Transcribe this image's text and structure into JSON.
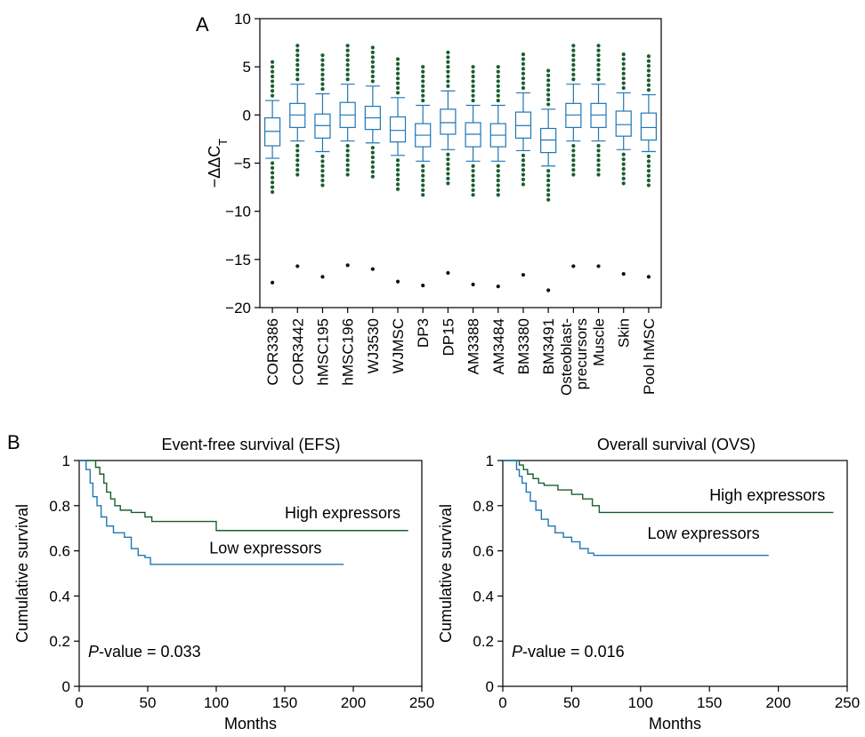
{
  "chart_data": [
    {
      "panel": "A",
      "type": "box",
      "ylabel": "−ΔΔC",
      "ylabel_sub": "T",
      "ylim": [
        -20,
        10
      ],
      "yticks": [
        10,
        5,
        0,
        -5,
        -10,
        -15,
        -20
      ],
      "box_color": "#1f77b4",
      "outlier_color": "#1a5e2e",
      "extreme_color": "#111111",
      "categories": [
        {
          "name": "COR3386",
          "q1": -3.2,
          "median": -1.7,
          "q3": -0.3,
          "wlo": -4.5,
          "whi": 1.5,
          "out_hi": [
            2.0,
            2.5,
            3.0,
            3.5,
            4.0,
            4.5,
            5.0,
            5.5
          ],
          "out_lo": [
            -5.0,
            -5.5,
            -6.0,
            -6.5,
            -7.0,
            -7.5,
            -8.0
          ],
          "extreme": -17.4
        },
        {
          "name": "COR3442",
          "q1": -1.3,
          "median": 0.0,
          "q3": 1.2,
          "wlo": -2.7,
          "whi": 3.2,
          "out_hi": [
            3.7,
            4.2,
            4.7,
            5.2,
            5.7,
            6.2,
            6.7,
            7.2
          ],
          "out_lo": [
            -3.2,
            -3.7,
            -4.2,
            -4.7,
            -5.2,
            -5.7,
            -6.2
          ],
          "extreme": -15.7
        },
        {
          "name": "hMSC195",
          "q1": -2.4,
          "median": -1.1,
          "q3": 0.1,
          "wlo": -3.8,
          "whi": 2.2,
          "out_hi": [
            2.7,
            3.2,
            3.7,
            4.2,
            4.7,
            5.2,
            5.7,
            6.2
          ],
          "out_lo": [
            -4.3,
            -4.8,
            -5.3,
            -5.8,
            -6.3,
            -6.8,
            -7.3
          ],
          "extreme": -16.8
        },
        {
          "name": "hMSC196",
          "q1": -1.3,
          "median": 0.0,
          "q3": 1.3,
          "wlo": -2.7,
          "whi": 3.2,
          "out_hi": [
            3.7,
            4.2,
            4.7,
            5.2,
            5.7,
            6.2,
            6.7,
            7.2
          ],
          "out_lo": [
            -3.2,
            -3.7,
            -4.2,
            -4.7,
            -5.2,
            -5.7,
            -6.2
          ],
          "extreme": -15.6
        },
        {
          "name": "WJ3530",
          "q1": -1.5,
          "median": -0.3,
          "q3": 0.9,
          "wlo": -2.9,
          "whi": 3.0,
          "out_hi": [
            3.5,
            4.0,
            4.5,
            5.0,
            5.5,
            6.0,
            6.5,
            7.0
          ],
          "out_lo": [
            -3.4,
            -3.9,
            -4.4,
            -4.9,
            -5.4,
            -5.9,
            -6.4
          ],
          "extreme": -16.0
        },
        {
          "name": "WJMSC",
          "q1": -2.8,
          "median": -1.6,
          "q3": -0.2,
          "wlo": -4.2,
          "whi": 1.8,
          "out_hi": [
            2.3,
            2.8,
            3.3,
            3.8,
            4.3,
            4.8,
            5.3,
            5.8
          ],
          "out_lo": [
            -4.7,
            -5.2,
            -5.7,
            -6.2,
            -6.7,
            -7.2,
            -7.7
          ],
          "extreme": -17.3
        },
        {
          "name": "DP3",
          "q1": -3.3,
          "median": -2.1,
          "q3": -0.9,
          "wlo": -4.8,
          "whi": 1.0,
          "out_hi": [
            1.5,
            2.0,
            2.5,
            3.0,
            3.5,
            4.0,
            4.5,
            5.0
          ],
          "out_lo": [
            -5.3,
            -5.8,
            -6.3,
            -6.8,
            -7.3,
            -7.8,
            -8.3
          ],
          "extreme": -17.7
        },
        {
          "name": "DP15",
          "q1": -2.0,
          "median": -0.8,
          "q3": 0.6,
          "wlo": -3.6,
          "whi": 2.5,
          "out_hi": [
            3.0,
            3.5,
            4.0,
            4.5,
            5.0,
            5.5,
            6.0,
            6.5
          ],
          "out_lo": [
            -4.1,
            -4.6,
            -5.1,
            -5.6,
            -6.1,
            -6.6,
            -7.1
          ],
          "extreme": -16.4
        },
        {
          "name": "AM3388",
          "q1": -3.3,
          "median": -2.0,
          "q3": -0.8,
          "wlo": -4.8,
          "whi": 1.0,
          "out_hi": [
            1.5,
            2.0,
            2.5,
            3.0,
            3.5,
            4.0,
            4.5,
            5.0
          ],
          "out_lo": [
            -5.3,
            -5.8,
            -6.3,
            -6.8,
            -7.3,
            -7.8,
            -8.3
          ],
          "extreme": -17.6
        },
        {
          "name": "AM3484",
          "q1": -3.3,
          "median": -2.1,
          "q3": -0.9,
          "wlo": -4.8,
          "whi": 1.0,
          "out_hi": [
            1.5,
            2.0,
            2.5,
            3.0,
            3.5,
            4.0,
            4.5,
            5.0
          ],
          "out_lo": [
            -5.3,
            -5.8,
            -6.3,
            -6.8,
            -7.3,
            -7.8,
            -8.3
          ],
          "extreme": -17.8
        },
        {
          "name": "BM3380",
          "q1": -2.4,
          "median": -1.1,
          "q3": 0.3,
          "wlo": -3.7,
          "whi": 2.3,
          "out_hi": [
            2.8,
            3.3,
            3.8,
            4.3,
            4.8,
            5.3,
            5.8,
            6.3
          ],
          "out_lo": [
            -4.2,
            -4.7,
            -5.2,
            -5.7,
            -6.2,
            -6.7,
            -7.2
          ],
          "extreme": -16.6
        },
        {
          "name": "BM3491",
          "q1": -3.9,
          "median": -2.6,
          "q3": -1.4,
          "wlo": -5.3,
          "whi": 0.6,
          "out_hi": [
            1.1,
            1.6,
            2.1,
            2.6,
            3.1,
            3.6,
            4.1,
            4.6
          ],
          "out_lo": [
            -5.8,
            -6.3,
            -6.8,
            -7.3,
            -7.8,
            -8.3,
            -8.8
          ],
          "extreme": -18.2
        },
        {
          "name": "Osteoblast-\nprecursors",
          "q1": -1.3,
          "median": 0.0,
          "q3": 1.2,
          "wlo": -2.7,
          "whi": 3.2,
          "out_hi": [
            3.7,
            4.2,
            4.7,
            5.2,
            5.7,
            6.2,
            6.7,
            7.2
          ],
          "out_lo": [
            -3.2,
            -3.7,
            -4.2,
            -4.7,
            -5.2,
            -5.7,
            -6.2
          ],
          "extreme": -15.7
        },
        {
          "name": "Muscle",
          "q1": -1.3,
          "median": 0.0,
          "q3": 1.2,
          "wlo": -2.7,
          "whi": 3.2,
          "out_hi": [
            3.7,
            4.2,
            4.7,
            5.2,
            5.7,
            6.2,
            6.7,
            7.2
          ],
          "out_lo": [
            -3.2,
            -3.7,
            -4.2,
            -4.7,
            -5.2,
            -5.7,
            -6.2
          ],
          "extreme": -15.7
        },
        {
          "name": "Skin",
          "q1": -2.2,
          "median": -1.0,
          "q3": 0.4,
          "wlo": -3.6,
          "whi": 2.3,
          "out_hi": [
            2.8,
            3.3,
            3.8,
            4.3,
            4.8,
            5.3,
            5.8,
            6.3
          ],
          "out_lo": [
            -4.1,
            -4.6,
            -5.1,
            -5.6,
            -6.1,
            -6.6,
            -7.1
          ],
          "extreme": -16.5
        },
        {
          "name": "Pool hMSC",
          "q1": -2.6,
          "median": -1.3,
          "q3": 0.2,
          "wlo": -3.8,
          "whi": 2.1,
          "out_hi": [
            2.6,
            3.1,
            3.6,
            4.1,
            4.6,
            5.1,
            5.6,
            6.1
          ],
          "out_lo": [
            -4.3,
            -4.8,
            -5.3,
            -5.8,
            -6.3,
            -6.8,
            -7.3
          ],
          "extreme": -16.8
        }
      ]
    },
    {
      "panel": "B",
      "type": "line",
      "title": "Event-free survival (EFS)",
      "xlabel": "Months",
      "ylabel": "Cumulative survival",
      "xlim": [
        0,
        250
      ],
      "ylim": [
        0,
        1
      ],
      "xticks": [
        0,
        50,
        100,
        150,
        200,
        250
      ],
      "yticks": [
        0,
        0.2,
        0.4,
        0.6,
        0.8,
        1
      ],
      "annotation_italic": "P",
      "annotation_rest": "-value = 0.033",
      "series": [
        {
          "name": "High expressors",
          "color": "#1a5e2e",
          "label_pos": [
            150,
            0.72
          ],
          "points": [
            [
              0,
              1
            ],
            [
              10,
              1
            ],
            [
              12,
              0.97
            ],
            [
              15,
              0.94
            ],
            [
              18,
              0.9
            ],
            [
              20,
              0.86
            ],
            [
              23,
              0.83
            ],
            [
              26,
              0.8
            ],
            [
              30,
              0.78
            ],
            [
              38,
              0.77
            ],
            [
              48,
              0.75
            ],
            [
              53,
              0.73
            ],
            [
              100,
              0.73
            ],
            [
              100,
              0.69
            ],
            [
              240,
              0.69
            ]
          ]
        },
        {
          "name": "Low expressors",
          "color": "#1f77b4",
          "label_pos": [
            95,
            0.565
          ],
          "points": [
            [
              0,
              1
            ],
            [
              3,
              1
            ],
            [
              5,
              0.96
            ],
            [
              8,
              0.9
            ],
            [
              10,
              0.84
            ],
            [
              13,
              0.8
            ],
            [
              16,
              0.75
            ],
            [
              20,
              0.71
            ],
            [
              25,
              0.68
            ],
            [
              33,
              0.66
            ],
            [
              38,
              0.61
            ],
            [
              43,
              0.58
            ],
            [
              48,
              0.57
            ],
            [
              52,
              0.54
            ],
            [
              193,
              0.54
            ]
          ]
        }
      ]
    },
    {
      "panel": "B",
      "type": "line",
      "title": "Overall survival (OVS)",
      "xlabel": "Months",
      "ylabel": "Cumulative survival",
      "xlim": [
        0,
        250
      ],
      "ylim": [
        0,
        1
      ],
      "xticks": [
        0,
        50,
        100,
        150,
        200,
        250
      ],
      "yticks": [
        0,
        0.2,
        0.4,
        0.6,
        0.8,
        1
      ],
      "annotation_italic": "P",
      "annotation_rest": "-value = 0.016",
      "series": [
        {
          "name": "High expressors",
          "color": "#1a5e2e",
          "label_pos": [
            150,
            0.8
          ],
          "points": [
            [
              0,
              1
            ],
            [
              8,
              1
            ],
            [
              12,
              0.98
            ],
            [
              15,
              0.96
            ],
            [
              18,
              0.94
            ],
            [
              22,
              0.92
            ],
            [
              26,
              0.9
            ],
            [
              30,
              0.89
            ],
            [
              40,
              0.87
            ],
            [
              50,
              0.85
            ],
            [
              58,
              0.83
            ],
            [
              65,
              0.8
            ],
            [
              70,
              0.77
            ],
            [
              240,
              0.77
            ]
          ]
        },
        {
          "name": "Low expressors",
          "color": "#1f77b4",
          "label_pos": [
            105,
            0.63
          ],
          "points": [
            [
              0,
              1
            ],
            [
              8,
              1
            ],
            [
              10,
              0.96
            ],
            [
              12,
              0.93
            ],
            [
              14,
              0.9
            ],
            [
              17,
              0.86
            ],
            [
              20,
              0.82
            ],
            [
              24,
              0.78
            ],
            [
              28,
              0.74
            ],
            [
              33,
              0.71
            ],
            [
              38,
              0.68
            ],
            [
              44,
              0.66
            ],
            [
              50,
              0.64
            ],
            [
              56,
              0.61
            ],
            [
              62,
              0.59
            ],
            [
              66,
              0.58
            ],
            [
              193,
              0.58
            ]
          ]
        }
      ]
    }
  ],
  "labels": {
    "panel_a": "A",
    "panel_b": "B"
  }
}
